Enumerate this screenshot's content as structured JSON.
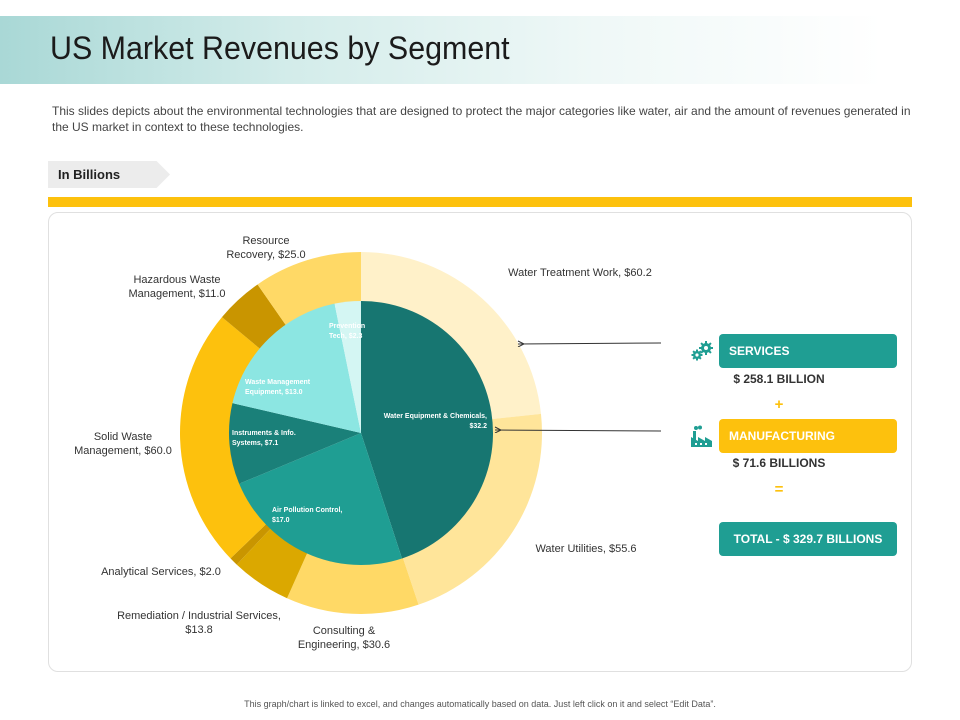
{
  "header": {
    "title": "US Market Revenues by Segment",
    "description": "This slides depicts about the environmental technologies that are designed to protect the major categories like water, air and the amount of revenues generated in the US market in context to these technologies."
  },
  "unit_tag": "In Billions",
  "colors": {
    "teal_dark": "#177671",
    "teal": "#1f9e93",
    "aqua": "#8ce6e2",
    "pale_aqua": "#d4f6f3",
    "yellow": "#fdc10d",
    "light_yellow": "#ffd966",
    "pale_yellow": "#fff1c9",
    "dark_gold": "#c99500"
  },
  "chart_data": {
    "type": "pie",
    "variant": "nested-donut",
    "outer_ring": [
      {
        "name": "Water Treatment Work",
        "label": "Water Treatment Work, $60.2",
        "value": 60.2,
        "color": "#fff1c9"
      },
      {
        "name": "Water Utilities",
        "label": "Water Utilities,  $55.6",
        "value": 55.6,
        "color": "#ffe59a"
      },
      {
        "name": "Consulting & Engineering",
        "label": "Consulting & Engineering, $30.6",
        "value": 30.6,
        "color": "#ffd966"
      },
      {
        "name": "Remediation / Industrial Services",
        "label": "Remediation / Industrial Services, $13.8",
        "value": 13.8,
        "color": "#dba800"
      },
      {
        "name": "Analytical Services",
        "label": "Analytical  Services, $2.0",
        "value": 2.0,
        "color": "#c99500"
      },
      {
        "name": "Solid Waste Management",
        "label": "Solid Waste Management, $60.0",
        "value": 60.0,
        "color": "#fdc10d"
      },
      {
        "name": "Hazardous Waste Management",
        "label": "Hazardous Waste Management, $11.0",
        "value": 11.0,
        "color": "#c99500"
      },
      {
        "name": "Resource Recovery",
        "label": "Resource Recovery, $25.0",
        "value": 25.0,
        "color": "#ffd966"
      }
    ],
    "inner_pie": [
      {
        "name": "Water Equipment & Chemicals",
        "label": "Water Equipment & Chemicals, $32.2",
        "value": 32.2,
        "color": "#177671"
      },
      {
        "name": "Air Pollution Control",
        "label": "Air Pollution Control, $17.0",
        "value": 17.0,
        "color": "#1f9e93"
      },
      {
        "name": "Instruments & Info. Systems",
        "label": "Instruments & Info. Systems, $7.1",
        "value": 7.1,
        "color": "#1a8079"
      },
      {
        "name": "Waste Management Equipment",
        "label": "Waste Management Equipment, $13.0",
        "value": 13.0,
        "color": "#8ce6e2"
      },
      {
        "name": "Prevention Tech",
        "label": "Prevention Tech, $2.3",
        "value": 2.3,
        "color": "#d4f6f3"
      }
    ]
  },
  "summary": {
    "services_label": "SERVICES",
    "services_amount": "$ 258.1 BILLION",
    "plus": "+",
    "manufacturing_label": "MANUFACTURING",
    "manufacturing_amount": "$ 71.6 BILLIONS",
    "equals": "=",
    "total_label": "TOTAL - $ 329.7 BILLIONS",
    "services_icon": "gears-icon",
    "manufacturing_icon": "factory-icon"
  },
  "footer": "This graph/chart is linked to excel, and changes automatically based on data. Just left click on it and select “Edit Data”."
}
